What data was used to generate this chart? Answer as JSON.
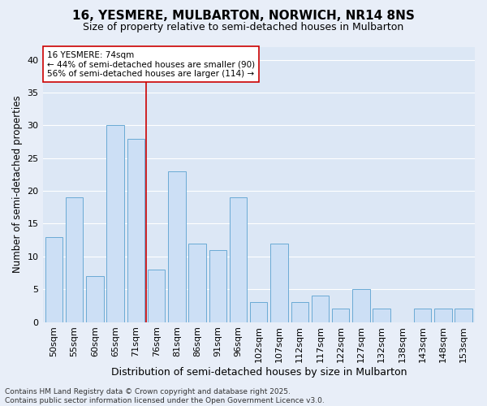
{
  "title": "16, YESMERE, MULBARTON, NORWICH, NR14 8NS",
  "subtitle": "Size of property relative to semi-detached houses in Mulbarton",
  "xlabel": "Distribution of semi-detached houses by size in Mulbarton",
  "ylabel": "Number of semi-detached properties",
  "categories": [
    "50sqm",
    "55sqm",
    "60sqm",
    "65sqm",
    "71sqm",
    "76sqm",
    "81sqm",
    "86sqm",
    "91sqm",
    "96sqm",
    "102sqm",
    "107sqm",
    "112sqm",
    "117sqm",
    "122sqm",
    "127sqm",
    "132sqm",
    "138sqm",
    "143sqm",
    "148sqm",
    "153sqm"
  ],
  "values": [
    13,
    19,
    7,
    30,
    28,
    8,
    23,
    12,
    11,
    19,
    3,
    12,
    3,
    4,
    2,
    5,
    2,
    0,
    2,
    2,
    2
  ],
  "bar_color": "#ccdff5",
  "bar_edge_color": "#6aaad4",
  "bar_width": 0.85,
  "vline_x": 4.5,
  "vline_color": "#cc0000",
  "annotation_text": "16 YESMERE: 74sqm\n← 44% of semi-detached houses are smaller (90)\n56% of semi-detached houses are larger (114) →",
  "annotation_box_facecolor": "#ffffff",
  "annotation_box_edgecolor": "#cc0000",
  "ylim": [
    0,
    42
  ],
  "yticks": [
    0,
    5,
    10,
    15,
    20,
    25,
    30,
    35,
    40
  ],
  "fig_facecolor": "#e8eef8",
  "plot_facecolor": "#dce7f5",
  "grid_color": "#ffffff",
  "footer": "Contains HM Land Registry data © Crown copyright and database right 2025.\nContains public sector information licensed under the Open Government Licence v3.0.",
  "title_fontsize": 11,
  "subtitle_fontsize": 9,
  "xlabel_fontsize": 9,
  "ylabel_fontsize": 8.5,
  "tick_fontsize": 8,
  "annotation_fontsize": 7.5,
  "footer_fontsize": 6.5
}
